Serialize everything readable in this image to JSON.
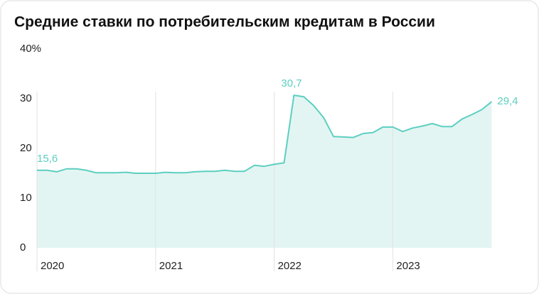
{
  "chart_data": {
    "type": "area",
    "title": "Средние ставки по потребительским кредитам в России",
    "categories": [
      "2020",
      null,
      null,
      null,
      null,
      null,
      null,
      null,
      null,
      null,
      null,
      null,
      "2021",
      null,
      null,
      null,
      null,
      null,
      null,
      null,
      null,
      null,
      null,
      null,
      "2022",
      null,
      null,
      null,
      null,
      null,
      null,
      null,
      null,
      null,
      null,
      null,
      "2023",
      null,
      null,
      null,
      null,
      null,
      null,
      null,
      null,
      null,
      null
    ],
    "values": [
      15.6,
      15.6,
      15.3,
      15.9,
      15.9,
      15.6,
      15.1,
      15.1,
      15.1,
      15.2,
      15.0,
      15.0,
      15.0,
      15.2,
      15.1,
      15.1,
      15.3,
      15.4,
      15.4,
      15.6,
      15.4,
      15.4,
      16.6,
      16.4,
      16.8,
      17.1,
      30.7,
      30.4,
      28.6,
      26.2,
      22.4,
      22.3,
      22.2,
      23.0,
      23.2,
      24.3,
      24.3,
      23.4,
      24.1,
      24.5,
      25.0,
      24.4,
      24.4,
      25.9,
      26.8,
      27.8,
      29.4
    ],
    "value_labels": [
      "15,6",
      null,
      null,
      null,
      null,
      null,
      null,
      null,
      null,
      null,
      null,
      null,
      null,
      null,
      null,
      null,
      null,
      null,
      null,
      null,
      null,
      null,
      null,
      null,
      null,
      null,
      "30,7",
      null,
      null,
      null,
      null,
      null,
      null,
      null,
      null,
      null,
      null,
      null,
      null,
      null,
      null,
      null,
      null,
      null,
      null,
      null,
      "29,4"
    ],
    "color": "#5ccfc1",
    "fill": "#e3f5f2",
    "ylim": [
      0,
      40
    ],
    "yticks": [
      0,
      10,
      20,
      30,
      {
        "value": 40,
        "label": "40%"
      }
    ]
  }
}
